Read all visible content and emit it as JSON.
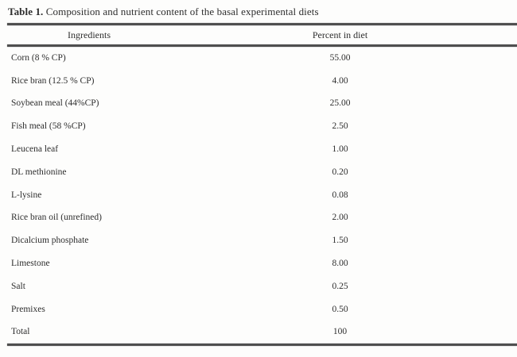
{
  "page": {
    "title_label": "Table 1.",
    "title_text": "Composition and nutrient content of the basal experimental diets"
  },
  "table": {
    "columns": [
      "Ingredients",
      "Percent in diet"
    ],
    "rows": [
      {
        "ingredient": "Corn (8 % CP)",
        "percent": "55.00"
      },
      {
        "ingredient": "Rice bran (12.5 % CP)",
        "percent": "4.00"
      },
      {
        "ingredient": "Soybean meal (44%CP)",
        "percent": "25.00"
      },
      {
        "ingredient": "Fish meal (58 %CP)",
        "percent": "2.50"
      },
      {
        "ingredient": "Leucena leaf",
        "percent": "1.00"
      },
      {
        "ingredient": "DL methionine",
        "percent": "0.20"
      },
      {
        "ingredient": "L-lysine",
        "percent": "0.08"
      },
      {
        "ingredient": "Rice bran oil (unrefined)",
        "percent": "2.00"
      },
      {
        "ingredient": "Dicalcium phosphate",
        "percent": "1.50"
      },
      {
        "ingredient": "Limestone",
        "percent": "8.00"
      },
      {
        "ingredient": "Salt",
        "percent": "0.25"
      },
      {
        "ingredient": "Premixes",
        "percent": "0.50"
      },
      {
        "ingredient": "Total",
        "percent": "100"
      }
    ]
  },
  "colors": {
    "text": "#2e2e2e",
    "rule": "#4f4f4f",
    "background": "#fdfdfc"
  }
}
